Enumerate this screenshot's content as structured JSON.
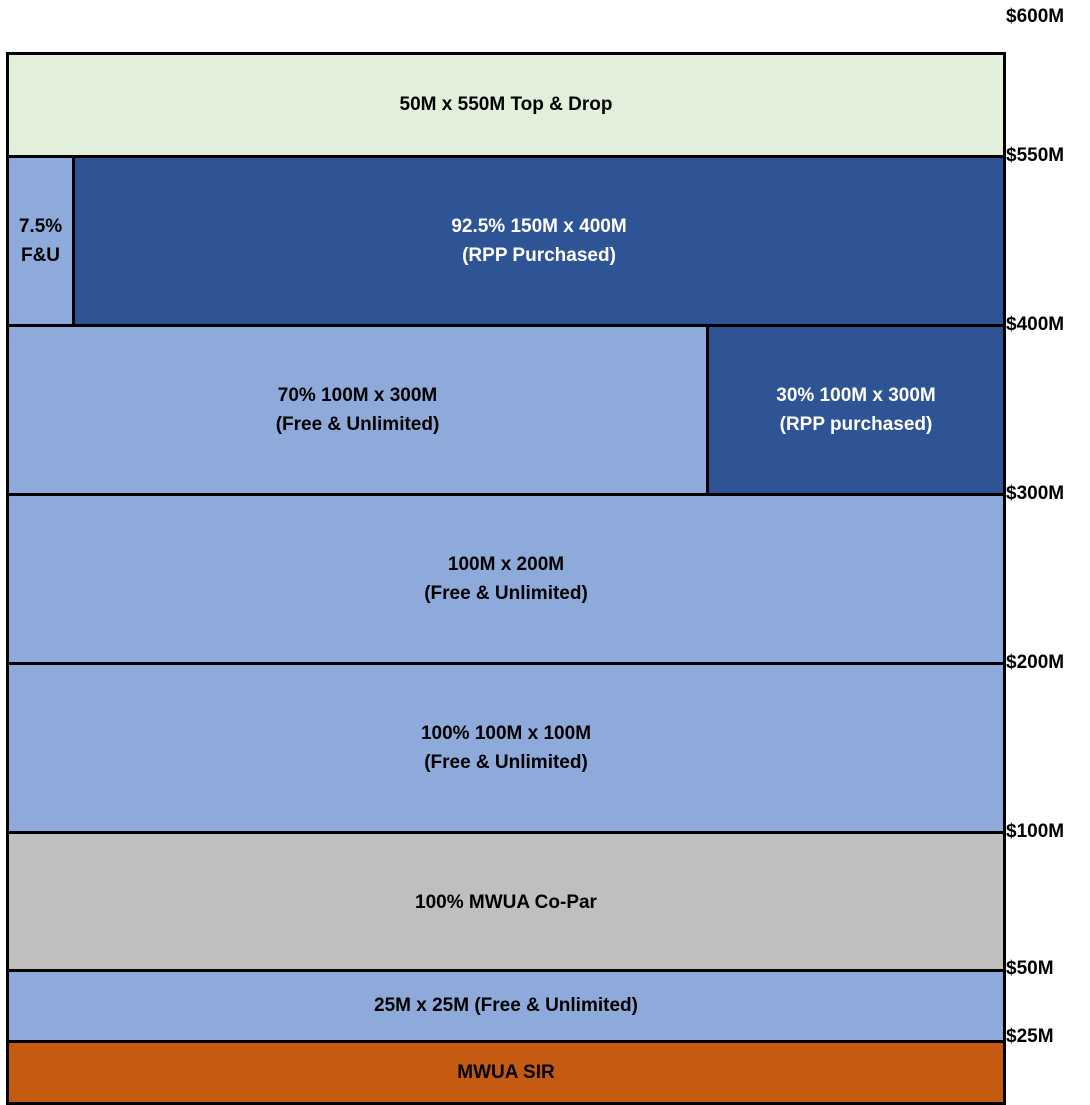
{
  "colors": {
    "light_green": "#e2efda",
    "light_blue": "#8eaadb",
    "dark_blue": "#2f5496",
    "gray": "#bfbfbf",
    "orange": "#c55a11"
  },
  "axis_labels": {
    "l600": "$600M",
    "l550": "$550M",
    "l400": "$400M",
    "l300": "$300M",
    "l200": "$200M",
    "l100": "$100M",
    "l50": "$50M",
    "l25": "$25M"
  },
  "layers": {
    "top_drop": "50M x 550M Top & Drop",
    "fu_share": "7.5%\nF&U",
    "rpp_150x400": "92.5% 150M x 400M\n(RPP Purchased)",
    "fu_100x300": "70% 100M x 300M\n(Free & Unlimited)",
    "rpp_100x300": "30% 100M x 300M\n(RPP purchased)",
    "fu_100x200": "100M x 200M\n(Free & Unlimited)",
    "fu_100x100": "100% 100M x 100M\n(Free & Unlimited)",
    "co_par": "100% MWUA Co-Par",
    "fu_25x25": "25M x 25M (Free & Unlimited)",
    "sir": "MWUA SIR"
  }
}
